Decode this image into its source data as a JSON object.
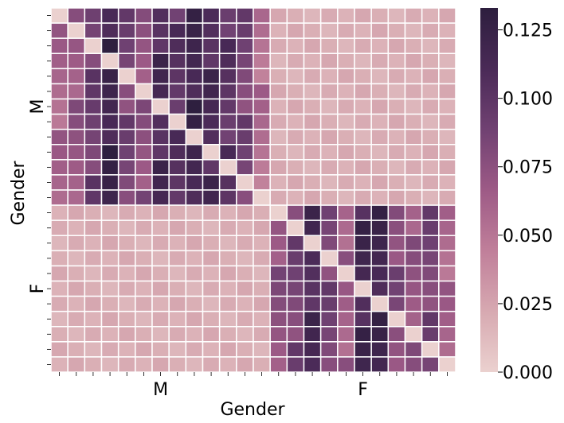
{
  "chart_data": {
    "type": "heatmap",
    "xlabel": "Gender",
    "ylabel": "Gender",
    "rows": 24,
    "cols": 24,
    "group_labels": [
      "M",
      "F"
    ],
    "group_sizes": [
      13,
      11
    ],
    "colorbar": {
      "min": 0.0,
      "max": 0.133,
      "ticks": [
        0.0,
        0.025,
        0.05,
        0.075,
        0.1,
        0.125
      ],
      "tick_labels": [
        "0.000",
        "0.025",
        "0.050",
        "0.075",
        "0.100",
        "0.125"
      ],
      "colors": [
        "#ebd1cf",
        "#d7a9b1",
        "#c07f9a",
        "#9d5a86",
        "#704172",
        "#4a2a57",
        "#2d1e3e"
      ]
    },
    "within_group_base": {
      "M": [
        0.06,
        0.07,
        0.09,
        0.12,
        0.085,
        0.075,
        0.11,
        0.1,
        0.12,
        0.11,
        0.1,
        0.085,
        0.055
      ],
      "F": [
        0.075,
        0.085,
        0.11,
        0.085,
        0.065,
        0.115,
        0.12,
        0.08,
        0.07,
        0.085,
        0.06
      ]
    },
    "cross_group_value": 0.015,
    "diagonal_value": 0.0
  }
}
